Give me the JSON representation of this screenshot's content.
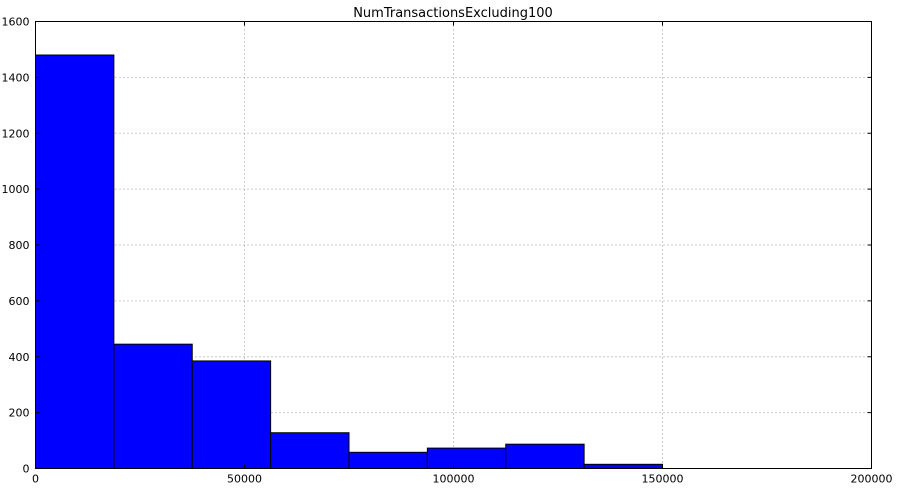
{
  "chart_data": {
    "type": "bar",
    "title": "NumTransactionsExcluding100",
    "xlabel": "",
    "ylabel": "",
    "xlim": [
      0,
      200000
    ],
    "ylim": [
      0,
      1600
    ],
    "bin_edges": [
      0,
      18750,
      37500,
      56250,
      75000,
      93750,
      112500,
      131250,
      150000
    ],
    "values": [
      1480,
      445,
      385,
      128,
      58,
      73,
      87,
      15
    ],
    "x_ticks": [
      0,
      50000,
      100000,
      150000,
      200000
    ],
    "y_ticks": [
      0,
      200,
      400,
      600,
      800,
      1000,
      1200,
      1400,
      1600
    ],
    "grid": true,
    "bar_color": "#0000ff",
    "edge_color": "#000000"
  }
}
